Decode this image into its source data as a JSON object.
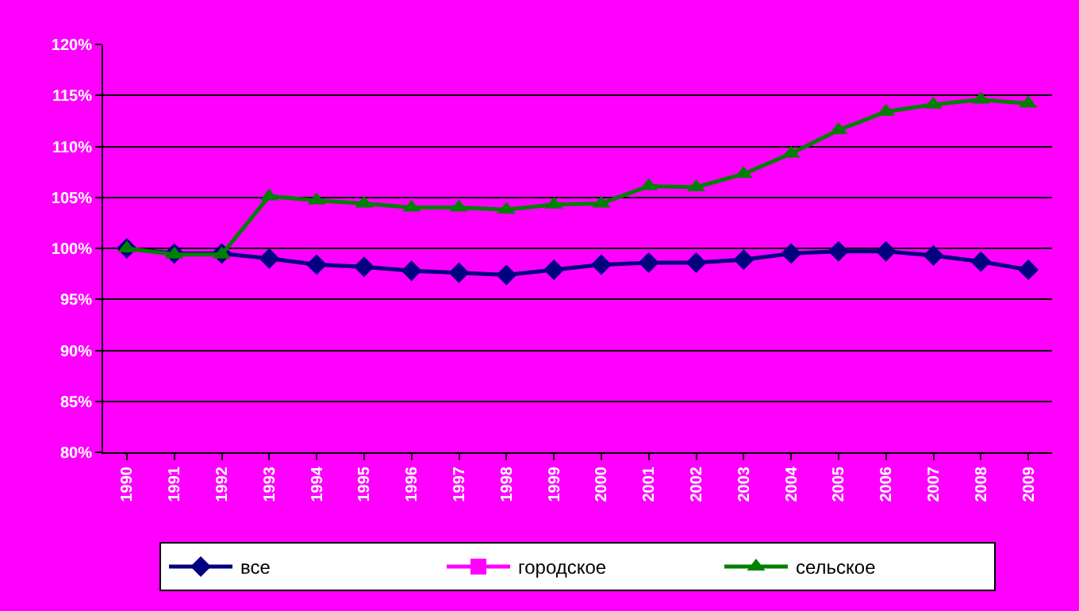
{
  "chart_data": {
    "type": "line",
    "categories": [
      "1990",
      "1991",
      "1992",
      "1993",
      "1994",
      "1995",
      "1996",
      "1997",
      "1998",
      "1999",
      "2000",
      "2001",
      "2002",
      "2003",
      "2004",
      "2005",
      "2006",
      "2007",
      "2008",
      "2009"
    ],
    "series": [
      {
        "name": "все",
        "color": "#000080",
        "marker": "diamond",
        "values": [
          100,
          99.5,
          99.5,
          99.0,
          98.4,
          98.2,
          97.8,
          97.6,
          97.4,
          97.9,
          98.4,
          98.6,
          98.6,
          98.9,
          99.5,
          99.7,
          99.7,
          99.3,
          98.7,
          97.9
        ]
      },
      {
        "name": "городское",
        "color": "#ff00ff",
        "marker": "square",
        "values": [
          null,
          null,
          null,
          null,
          null,
          null,
          null,
          null,
          null,
          null,
          null,
          null,
          null,
          null,
          null,
          null,
          null,
          null,
          null,
          null
        ]
      },
      {
        "name": "сельское",
        "color": "#008000",
        "marker": "triangle",
        "values": [
          100,
          99.4,
          99.4,
          105.1,
          104.7,
          104.4,
          104.0,
          104.0,
          103.8,
          104.3,
          104.4,
          106.1,
          106.0,
          107.3,
          109.3,
          111.6,
          113.4,
          114.1,
          114.6,
          114.2
        ]
      }
    ],
    "ylim": [
      80,
      120
    ],
    "yticks": [
      {
        "value": 80,
        "label": "80%"
      },
      {
        "value": 85,
        "label": "85%"
      },
      {
        "value": 90,
        "label": "90%"
      },
      {
        "value": 95,
        "label": "95%"
      },
      {
        "value": 100,
        "label": "100%"
      },
      {
        "value": 105,
        "label": "105%"
      },
      {
        "value": 110,
        "label": "110%"
      },
      {
        "value": 115,
        "label": "115%"
      },
      {
        "value": 120,
        "label": "120%"
      }
    ],
    "grid": "y",
    "legend": "bottom",
    "line_style": "solid"
  }
}
